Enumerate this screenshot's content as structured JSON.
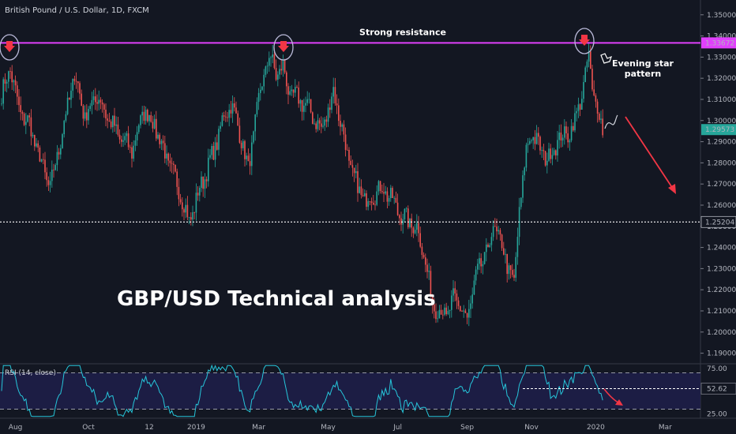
{
  "header": {
    "symbol_title": "British Pound / U.S. Dollar, 1D, FXCM"
  },
  "chart_data": {
    "type": "candlestick",
    "title": "GBP/USD Technical analysis",
    "price_axis": {
      "ylim": [
        1.185,
        1.357
      ],
      "ticks": [
        "1.35000",
        "1.34000",
        "1.33000",
        "1.32000",
        "1.31000",
        "1.30000",
        "1.29000",
        "1.28000",
        "1.27000",
        "1.26000",
        "1.25000",
        "1.24000",
        "1.23000",
        "1.22000",
        "1.21000",
        "1.20000",
        "1.19000"
      ],
      "tick_values": [
        1.35,
        1.34,
        1.33,
        1.32,
        1.31,
        1.3,
        1.29,
        1.28,
        1.27,
        1.26,
        1.25,
        1.24,
        1.23,
        1.22,
        1.21,
        1.2,
        1.19
      ]
    },
    "time_axis": {
      "labels": [
        "Aug",
        "Oct",
        "12",
        "2019",
        "Mar",
        "May",
        "Jul",
        "Sep",
        "Nov",
        "2020",
        "Mar"
      ],
      "label_index": [
        8,
        50,
        85,
        112,
        148,
        188,
        228,
        268,
        305,
        342,
        382
      ]
    },
    "levels": {
      "resistance": {
        "value": 1.33672,
        "label": "1.33672",
        "color": "#e040fb",
        "name": "Strong resistance"
      },
      "support": {
        "value": 1.25204,
        "label": "1.25204",
        "color": "#ffffff"
      },
      "last_price": {
        "value": 1.29573,
        "label": "1.29573",
        "color": "#26a69a"
      }
    },
    "annotations": {
      "pattern": [
        "Evening star",
        "pattern"
      ]
    },
    "anchors": [
      [
        0,
        1.312
      ],
      [
        5,
        1.325
      ],
      [
        10,
        1.305
      ],
      [
        16,
        1.298
      ],
      [
        22,
        1.282
      ],
      [
        28,
        1.268
      ],
      [
        35,
        1.295
      ],
      [
        42,
        1.322
      ],
      [
        48,
        1.302
      ],
      [
        55,
        1.312
      ],
      [
        62,
        1.3
      ],
      [
        68,
        1.292
      ],
      [
        75,
        1.286
      ],
      [
        82,
        1.305
      ],
      [
        88,
        1.298
      ],
      [
        96,
        1.28
      ],
      [
        102,
        1.268
      ],
      [
        108,
        1.252
      ],
      [
        115,
        1.27
      ],
      [
        122,
        1.285
      ],
      [
        128,
        1.302
      ],
      [
        132,
        1.308
      ],
      [
        138,
        1.292
      ],
      [
        142,
        1.276
      ],
      [
        146,
        1.3
      ],
      [
        150,
        1.318
      ],
      [
        154,
        1.331
      ],
      [
        158,
        1.322
      ],
      [
        162,
        1.325
      ],
      [
        166,
        1.312
      ],
      [
        172,
        1.31
      ],
      [
        178,
        1.304
      ],
      [
        184,
        1.295
      ],
      [
        188,
        1.305
      ],
      [
        191,
        1.314
      ],
      [
        195,
        1.3
      ],
      [
        200,
        1.28
      ],
      [
        205,
        1.268
      ],
      [
        210,
        1.262
      ],
      [
        215,
        1.266
      ],
      [
        220,
        1.268
      ],
      [
        225,
        1.262
      ],
      [
        230,
        1.255
      ],
      [
        235,
        1.252
      ],
      [
        240,
        1.248
      ],
      [
        244,
        1.232
      ],
      [
        248,
        1.214
      ],
      [
        252,
        1.21
      ],
      [
        256,
        1.208
      ],
      [
        260,
        1.215
      ],
      [
        264,
        1.213
      ],
      [
        268,
        1.205
      ],
      [
        272,
        1.223
      ],
      [
        276,
        1.232
      ],
      [
        280,
        1.24
      ],
      [
        284,
        1.25
      ],
      [
        288,
        1.24
      ],
      [
        292,
        1.23
      ],
      [
        295,
        1.222
      ],
      [
        298,
        1.258
      ],
      [
        302,
        1.285
      ],
      [
        305,
        1.295
      ],
      [
        310,
        1.286
      ],
      [
        315,
        1.282
      ],
      [
        320,
        1.291
      ],
      [
        325,
        1.293
      ],
      [
        330,
        1.299
      ],
      [
        333,
        1.31
      ],
      [
        336,
        1.32
      ],
      [
        338,
        1.331
      ],
      [
        340,
        1.315
      ],
      [
        343,
        1.305
      ],
      [
        346,
        1.296
      ]
    ],
    "rsi": {
      "label": "RSI (14, close)",
      "ylim": [
        20,
        80
      ],
      "levels": [
        70,
        30
      ],
      "ticks": [
        "75.00",
        "25.00"
      ],
      "tick_values": [
        75,
        25
      ],
      "current": {
        "value": 52.62,
        "label": "52.62"
      },
      "color": "#26c6da"
    }
  }
}
